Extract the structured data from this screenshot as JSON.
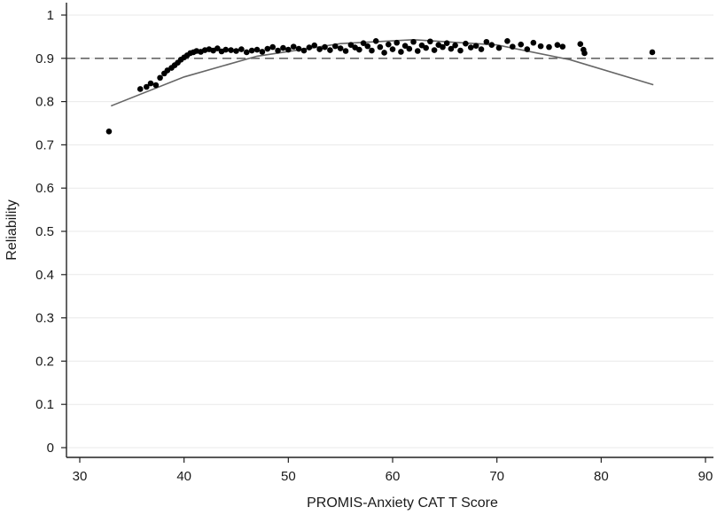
{
  "chart_data": {
    "type": "scatter",
    "title": "",
    "xlabel": "PROMIS-Anxiety CAT T Score",
    "ylabel": "Reliability",
    "xlim": [
      30,
      91
    ],
    "ylim": [
      0,
      1
    ],
    "xticks": [
      30,
      40,
      50,
      60,
      70,
      80,
      90
    ],
    "yticks": [
      0,
      0.1,
      0.2,
      0.3,
      0.4,
      0.5,
      0.6,
      0.7,
      0.8,
      0.9,
      1
    ],
    "grid": "horizontal",
    "legend": "none",
    "reference_line": {
      "y": 0.9,
      "style": "dashed"
    },
    "fit_curve": {
      "type": "quadratic",
      "points": [
        [
          33,
          0.79
        ],
        [
          40,
          0.857
        ],
        [
          47,
          0.905
        ],
        [
          55,
          0.934
        ],
        [
          62,
          0.943
        ],
        [
          70,
          0.931
        ],
        [
          77,
          0.897
        ],
        [
          85,
          0.839
        ]
      ]
    },
    "points": [
      [
        32.8,
        0.731
      ],
      [
        35.8,
        0.829
      ],
      [
        36.4,
        0.834
      ],
      [
        36.8,
        0.842
      ],
      [
        37.3,
        0.838
      ],
      [
        37.7,
        0.855
      ],
      [
        38.1,
        0.865
      ],
      [
        38.4,
        0.872
      ],
      [
        38.8,
        0.878
      ],
      [
        39.1,
        0.884
      ],
      [
        39.4,
        0.89
      ],
      [
        39.7,
        0.897
      ],
      [
        40.0,
        0.902
      ],
      [
        40.3,
        0.907
      ],
      [
        40.6,
        0.912
      ],
      [
        40.9,
        0.914
      ],
      [
        41.2,
        0.917
      ],
      [
        41.6,
        0.915
      ],
      [
        42.0,
        0.919
      ],
      [
        42.4,
        0.921
      ],
      [
        42.8,
        0.918
      ],
      [
        43.2,
        0.923
      ],
      [
        43.6,
        0.916
      ],
      [
        44.0,
        0.92
      ],
      [
        44.5,
        0.919
      ],
      [
        45.0,
        0.917
      ],
      [
        45.5,
        0.921
      ],
      [
        46.0,
        0.914
      ],
      [
        46.5,
        0.918
      ],
      [
        47.0,
        0.92
      ],
      [
        47.5,
        0.915
      ],
      [
        48.0,
        0.922
      ],
      [
        48.5,
        0.926
      ],
      [
        49.0,
        0.918
      ],
      [
        49.5,
        0.924
      ],
      [
        50.0,
        0.92
      ],
      [
        50.5,
        0.927
      ],
      [
        51.0,
        0.922
      ],
      [
        51.5,
        0.918
      ],
      [
        52.0,
        0.925
      ],
      [
        52.5,
        0.93
      ],
      [
        53.0,
        0.921
      ],
      [
        53.5,
        0.926
      ],
      [
        54.0,
        0.919
      ],
      [
        54.5,
        0.928
      ],
      [
        55.0,
        0.923
      ],
      [
        55.5,
        0.917
      ],
      [
        56.0,
        0.931
      ],
      [
        56.4,
        0.925
      ],
      [
        56.8,
        0.92
      ],
      [
        57.2,
        0.935
      ],
      [
        57.6,
        0.928
      ],
      [
        58.0,
        0.918
      ],
      [
        58.4,
        0.94
      ],
      [
        58.8,
        0.926
      ],
      [
        59.2,
        0.913
      ],
      [
        59.6,
        0.932
      ],
      [
        60.0,
        0.921
      ],
      [
        60.4,
        0.936
      ],
      [
        60.8,
        0.915
      ],
      [
        61.2,
        0.929
      ],
      [
        61.6,
        0.922
      ],
      [
        62.0,
        0.938
      ],
      [
        62.4,
        0.917
      ],
      [
        62.8,
        0.93
      ],
      [
        63.2,
        0.924
      ],
      [
        63.6,
        0.939
      ],
      [
        64.0,
        0.919
      ],
      [
        64.4,
        0.931
      ],
      [
        64.8,
        0.926
      ],
      [
        65.2,
        0.935
      ],
      [
        65.6,
        0.922
      ],
      [
        66.0,
        0.93
      ],
      [
        66.5,
        0.918
      ],
      [
        67.0,
        0.934
      ],
      [
        67.5,
        0.925
      ],
      [
        68.0,
        0.929
      ],
      [
        68.5,
        0.921
      ],
      [
        69.0,
        0.938
      ],
      [
        69.5,
        0.931
      ],
      [
        70.2,
        0.924
      ],
      [
        71.0,
        0.94
      ],
      [
        71.5,
        0.927
      ],
      [
        72.3,
        0.932
      ],
      [
        72.9,
        0.921
      ],
      [
        73.5,
        0.936
      ],
      [
        74.2,
        0.928
      ],
      [
        75.0,
        0.926
      ],
      [
        75.8,
        0.931
      ],
      [
        76.3,
        0.927
      ],
      [
        78.0,
        0.933
      ],
      [
        78.3,
        0.92
      ],
      [
        78.4,
        0.912
      ],
      [
        84.9,
        0.914
      ]
    ]
  }
}
